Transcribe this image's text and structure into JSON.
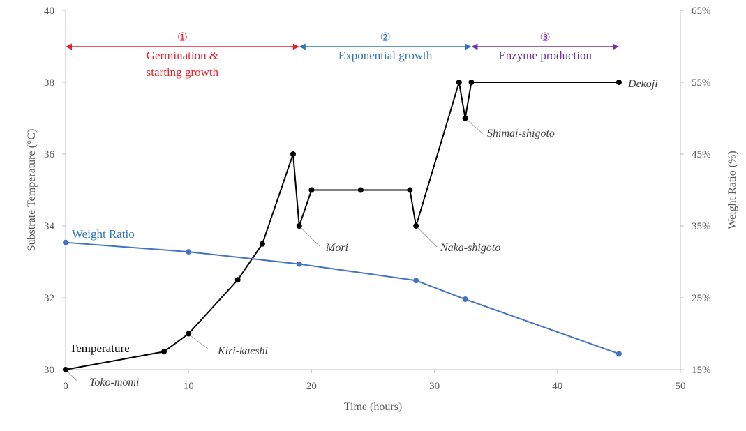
{
  "chart_data": {
    "type": "line",
    "xlabel": "Time (hours)",
    "ylabel_left": "Substrate Temperature (°C)",
    "ylabel_right": "Weight Ratio (%)",
    "xlim": [
      0,
      50
    ],
    "ylim_left": [
      30,
      40
    ],
    "ylim_right": [
      15,
      65
    ],
    "x_ticks": [
      "0",
      "10",
      "20",
      "30",
      "40",
      "50"
    ],
    "y_ticks_left": [
      "30",
      "32",
      "34",
      "36",
      "38",
      "40"
    ],
    "y_ticks_right": [
      "15%",
      "25%",
      "35%",
      "45%",
      "55%",
      "65%"
    ],
    "grid": false,
    "series": [
      {
        "name": "Temperature",
        "axis": "left",
        "color": "#000000",
        "x": [
          0,
          8,
          10,
          14,
          16,
          18.5,
          19,
          20,
          24,
          28,
          28.5,
          32,
          32.5,
          33,
          45
        ],
        "y": [
          30,
          30.5,
          31,
          32.5,
          33.5,
          36,
          34,
          35,
          35,
          35,
          34,
          38,
          37,
          38,
          38
        ]
      },
      {
        "name": "Weight Ratio",
        "axis": "right",
        "color": "#4472C4",
        "label_color": "#2E75B6",
        "x": [
          0,
          10,
          19,
          28.5,
          32.5,
          45
        ],
        "y": [
          32.7,
          31.4,
          29.7,
          27.4,
          24.8,
          17.2
        ]
      }
    ],
    "phases": [
      {
        "marker": "①",
        "label_lines": [
          "Germination &",
          "starting growth"
        ],
        "x_start": 0,
        "x_end": 19,
        "color": "#E8202A"
      },
      {
        "marker": "②",
        "label_lines": [
          "Exponential growth"
        ],
        "x_start": 19,
        "x_end": 33,
        "color": "#2E75B6"
      },
      {
        "marker": "③",
        "label_lines": [
          "Enzyme production"
        ],
        "x_start": 33,
        "x_end": 45,
        "color": "#7030A0"
      }
    ],
    "annotations": [
      {
        "text": "Toko-momi",
        "x": 0,
        "y": 30
      },
      {
        "text": "Kiri-kaeshi",
        "x": 10,
        "y": 31
      },
      {
        "text": "Mori",
        "x": 19,
        "y": 34
      },
      {
        "text": "Naka-shigoto",
        "x": 28.5,
        "y": 34
      },
      {
        "text": "Shimai-shigoto",
        "x": 32.5,
        "y": 37
      },
      {
        "text": "Dekoji",
        "x": 45,
        "y": 38
      }
    ]
  }
}
